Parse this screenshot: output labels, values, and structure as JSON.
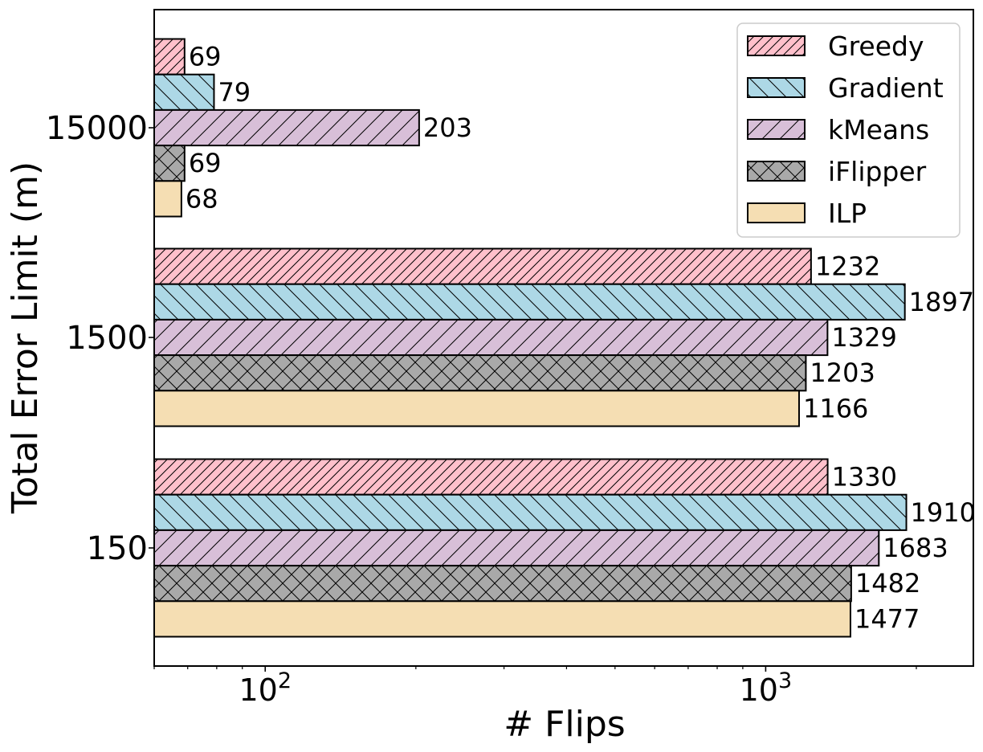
{
  "chart_data": {
    "type": "bar",
    "orientation": "horizontal",
    "xlabel": "# Flips",
    "ylabel": "Total Error Limit (m)",
    "xscale": "log",
    "xlim": [
      60,
      2600
    ],
    "x_ticks": [
      {
        "value": 100,
        "base": "10",
        "exp": "2"
      },
      {
        "value": 1000,
        "base": "10",
        "exp": "3"
      }
    ],
    "categories": [
      "15000",
      "1500",
      "150"
    ],
    "legend_position": "top-right",
    "grid": false,
    "series": [
      {
        "name": "Greedy",
        "color": "#ffc0cb",
        "hatch": "diag-up",
        "values": [
          69,
          1232,
          1330
        ]
      },
      {
        "name": "Gradient",
        "color": "#add8e6",
        "hatch": "diag-down",
        "values": [
          79,
          1897,
          1910
        ]
      },
      {
        "name": "kMeans",
        "color": "#d8bfd8",
        "hatch": "diag-up-sparse",
        "values": [
          203,
          1329,
          1683
        ]
      },
      {
        "name": "iFlipper",
        "color": "#a9a9a9",
        "hatch": "cross",
        "values": [
          69,
          1203,
          1482
        ]
      },
      {
        "name": "ILP",
        "color": "#f5deb3",
        "hatch": "none",
        "values": [
          68,
          1166,
          1477
        ]
      }
    ]
  }
}
